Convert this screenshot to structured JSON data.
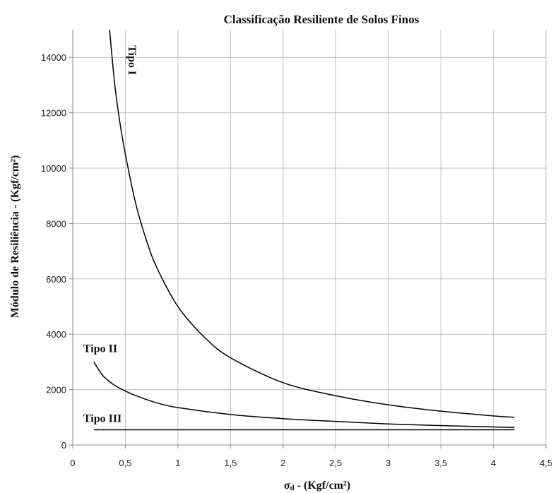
{
  "chart_data": {
    "type": "line",
    "title": "Classificação Resiliente de Solos Finos",
    "xlabel_symbol": "σ",
    "xlabel_sub": "d",
    "xlabel_rest": " - (Kgf/cm²)",
    "ylabel": "Módulo de Resiliência  - (Kgf/cm²)",
    "xlim": [
      0,
      4.5
    ],
    "ylim": [
      0,
      15000
    ],
    "x_ticks": [
      0,
      0.5,
      1,
      1.5,
      2,
      2.5,
      3,
      3.5,
      4,
      4.5
    ],
    "x_tick_labels": [
      "0",
      "0,5",
      "1",
      "1,5",
      "2",
      "2,5",
      "3",
      "3,5",
      "4",
      "4,5"
    ],
    "y_ticks": [
      0,
      2000,
      4000,
      6000,
      8000,
      10000,
      12000,
      14000
    ],
    "y_tick_labels": [
      "0",
      "2000",
      "4000",
      "6000",
      "8000",
      "10000",
      "12000",
      "14000"
    ],
    "grid": true,
    "series": [
      {
        "name": "Tipo I",
        "x": [
          0.35,
          0.4,
          0.45,
          0.5,
          0.6,
          0.7,
          0.8,
          1.0,
          1.25,
          1.5,
          2.0,
          2.5,
          3.0,
          3.5,
          4.0,
          4.2
        ],
        "y": [
          15000,
          13000,
          11600,
          10500,
          8700,
          7400,
          6400,
          5000,
          3900,
          3150,
          2250,
          1780,
          1450,
          1220,
          1050,
          1000
        ]
      },
      {
        "name": "Tipo II",
        "x": [
          0.2,
          0.25,
          0.3,
          0.4,
          0.5,
          0.6,
          0.8,
          1.0,
          1.5,
          2.0,
          2.5,
          3.0,
          3.5,
          4.0,
          4.2
        ],
        "y": [
          3000,
          2700,
          2450,
          2150,
          1950,
          1780,
          1520,
          1350,
          1100,
          950,
          850,
          760,
          700,
          650,
          630
        ]
      },
      {
        "name": "Tipo III",
        "x": [
          0.2,
          1.0,
          2.0,
          3.0,
          4.0,
          4.2
        ],
        "y": [
          550,
          550,
          550,
          550,
          550,
          550
        ]
      }
    ]
  }
}
